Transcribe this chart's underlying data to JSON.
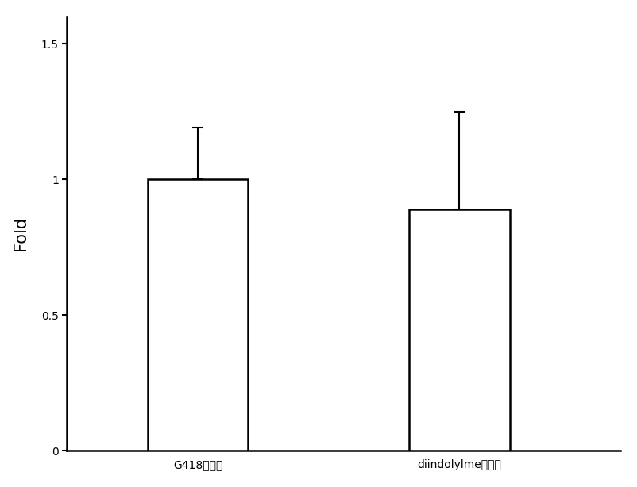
{
  "categories": [
    "G418处理组",
    "diindolylme处理组"
  ],
  "values": [
    1.0,
    0.89
  ],
  "errors_upper": [
    0.19,
    0.36
  ],
  "errors_lower": [
    0.0,
    0.0
  ],
  "bar_colors": [
    "#ffffff",
    "#ffffff"
  ],
  "bar_edgecolors": [
    "#000000",
    "#000000"
  ],
  "bar_width": 0.5,
  "bar_positions": [
    1.0,
    2.3
  ],
  "ylabel": "Fold",
  "ylim": [
    0,
    1.6
  ],
  "yticks": [
    0,
    0.5,
    1.0,
    1.5
  ],
  "ytick_labels": [
    "0",
    "0.5",
    "1",
    "1.5"
  ],
  "background_color": "#ffffff",
  "axes_background_color": "#ffffff",
  "errorbar_color": "#000000",
  "errorbar_capsize": 5,
  "errorbar_linewidth": 1.5,
  "bar_linewidth": 1.8,
  "ylabel_fontsize": 15,
  "tick_fontsize": 14,
  "xtick_fontsize": 13,
  "xlim": [
    0.35,
    3.1
  ]
}
